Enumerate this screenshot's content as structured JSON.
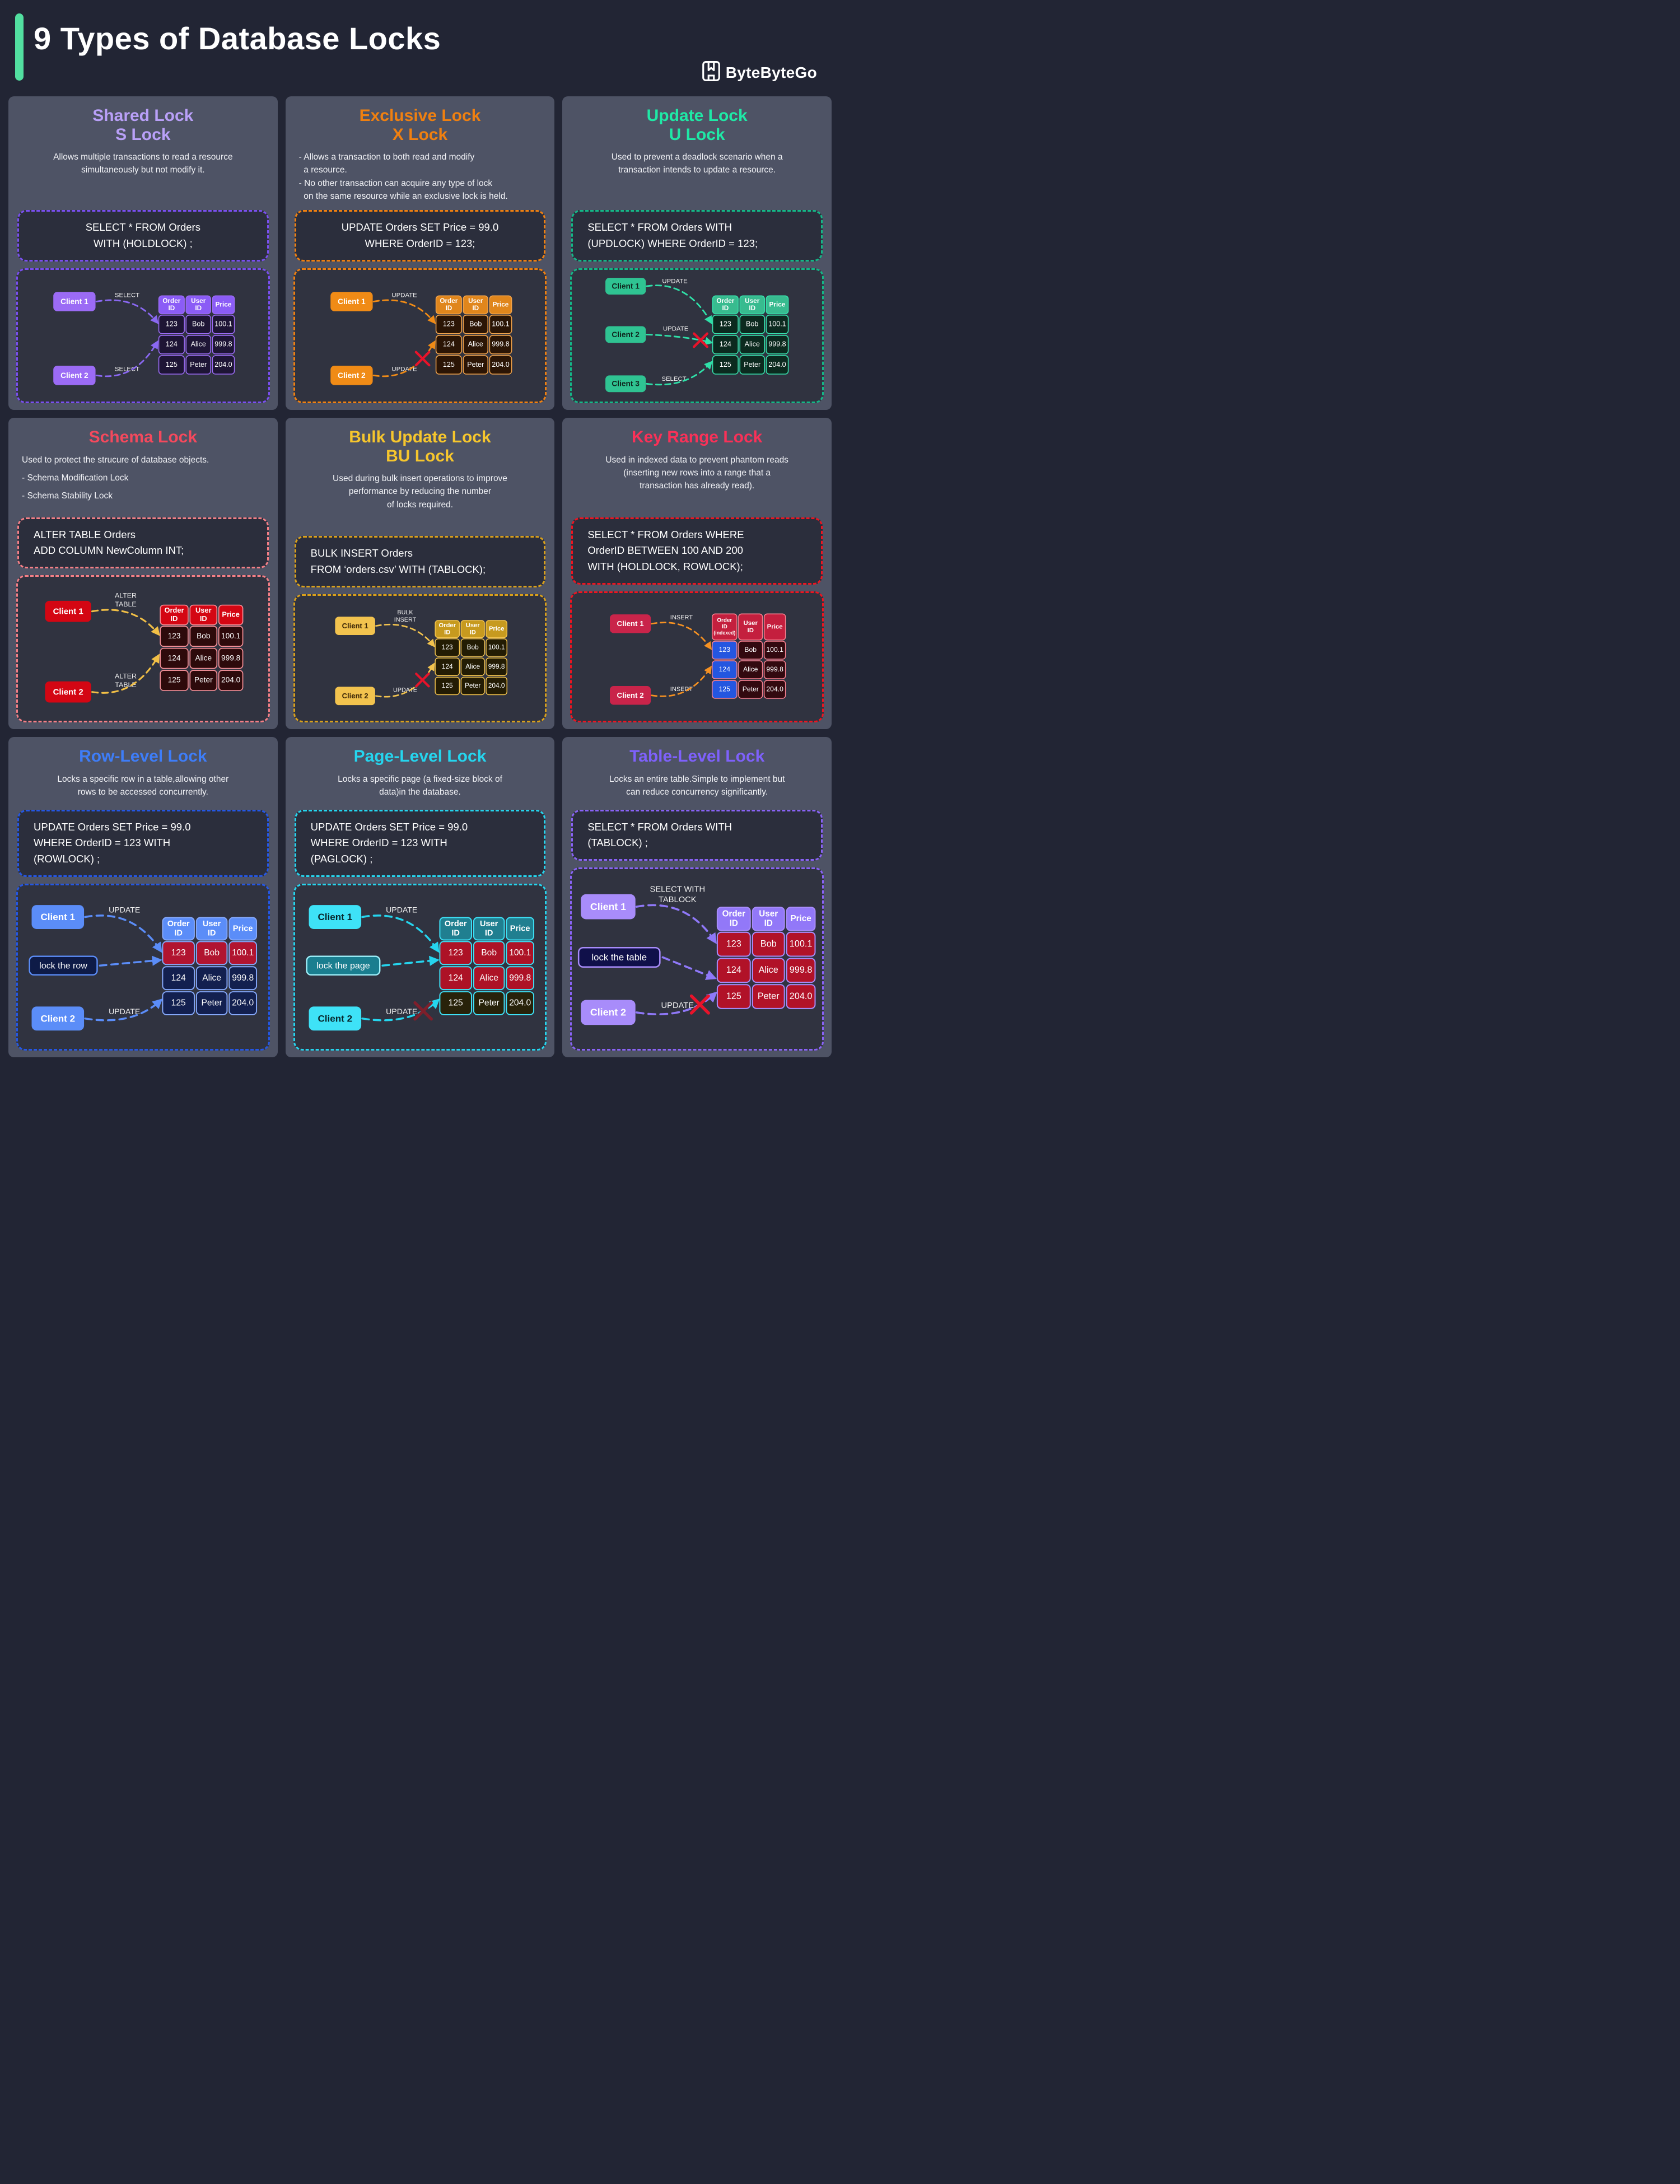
{
  "header": {
    "title": "9 Types of Database Locks",
    "brand": "ByteByteGo",
    "accent_bar_color": "#52dfa0"
  },
  "table_common": {
    "header_cols": [
      [
        "Order",
        "ID"
      ],
      [
        "User",
        "ID"
      ],
      [
        "Price"
      ]
    ],
    "rows": [
      [
        "123",
        "Bob",
        "100.1"
      ],
      [
        "124",
        "Alice",
        "999.8"
      ],
      [
        "125",
        "Peter",
        "204.0"
      ]
    ]
  },
  "panels": [
    {
      "key": "shared-lock",
      "title_lines": [
        "Shared Lock",
        "S Lock"
      ],
      "title_color": "#b9a0f8",
      "desc_align": "center",
      "desc_lines": [
        "Allows multiple transactions to read a resource",
        "simultaneously but not modify it."
      ],
      "code_align": "center",
      "code_lines": [
        "SELECT * FROM Orders",
        "WITH (HOLDLOCK) ;"
      ],
      "colors": {
        "dash": "#7a4ff0",
        "arrow": "#8a68f2",
        "label": "#f0f0f0",
        "x": "#e8132a",
        "client_bg": "#9b6bf5",
        "client_text": "#ffffff",
        "header_bg": "#8b5cf6",
        "header_text": "#ffffff",
        "cell_bg": "#1e1535",
        "cell_border": "#9b6bf5",
        "row_bg": null,
        "col0_bg": null
      },
      "clients": [
        {
          "name": "Client 1",
          "action_lines": [
            "SELECT"
          ],
          "blocked": false,
          "target_row": 0
        },
        {
          "name": "Client 2",
          "action_lines": [
            "SELECT"
          ],
          "blocked": false,
          "target_row": 1
        }
      ],
      "mid_box": null,
      "header_cols_override": null
    },
    {
      "key": "exclusive-lock",
      "title_lines": [
        "Exclusive Lock",
        "X Lock"
      ],
      "title_color": "#f08010",
      "desc_align": "left",
      "desc_lines": [
        "- Allows a transaction to both read and modify",
        "  a resource.",
        "- No other transaction can acquire any type of lock",
        "  on the same resource while an exclusive lock is held."
      ],
      "code_align": "center",
      "code_lines": [
        "UPDATE Orders SET Price = 99.0",
        "WHERE OrderID = 123;"
      ],
      "colors": {
        "dash": "#f08010",
        "arrow": "#f08b16",
        "label": "#f0f0f0",
        "x": "#e8132a",
        "client_bg": "#f08b16",
        "client_text": "#ffffff",
        "header_bg": "#e0861c",
        "header_text": "#ffffff",
        "cell_bg": "#2b1505",
        "cell_border": "#f0a24a",
        "row_bg": null,
        "col0_bg": null
      },
      "clients": [
        {
          "name": "Client 1",
          "action_lines": [
            "UPDATE"
          ],
          "blocked": false,
          "target_row": 0
        },
        {
          "name": "Client 2",
          "action_lines": [
            "UPDATE"
          ],
          "blocked": true,
          "target_row": 1
        }
      ],
      "mid_box": null,
      "header_cols_override": null
    },
    {
      "key": "update-lock",
      "title_lines": [
        "Update Lock",
        "U Lock"
      ],
      "title_color": "#1fe9a6",
      "desc_align": "center",
      "desc_lines": [
        "Used to prevent a deadlock scenario when a",
        "transaction intends to update a resource."
      ],
      "code_align": "left",
      "code_lines": [
        "SELECT * FROM Orders WITH",
        "(UPDLOCK) WHERE OrderID = 123;"
      ],
      "colors": {
        "dash": "#14b787",
        "arrow": "#2fe0a8",
        "label": "#f0f0f0",
        "x": "#e8132a",
        "client_bg": "#2fc392",
        "client_text": "#10261e",
        "header_bg": "#38bb8f",
        "header_text": "#ffffff",
        "cell_bg": "#0c2a1f",
        "cell_border": "#35e2ac",
        "row_bg": null,
        "col0_bg": null
      },
      "clients": [
        {
          "name": "Client 1",
          "action_lines": [
            "UPDATE"
          ],
          "blocked": false,
          "target_row": 0
        },
        {
          "name": "Client 2",
          "action_lines": [
            "UPDATE"
          ],
          "blocked": true,
          "target_row": 1
        },
        {
          "name": "Client 3",
          "action_lines": [
            "SELECT"
          ],
          "blocked": false,
          "target_row": 2
        }
      ],
      "mid_box": null,
      "header_cols_override": null
    },
    {
      "key": "schema-lock",
      "title_lines": [
        "Schema Lock"
      ],
      "title_color": "#f4495d",
      "desc_align": "left",
      "desc_lines": [
        "Used to protect the strucure of database objects.",
        "- Schema Modification Lock",
        "- Schema Stability Lock"
      ],
      "code_align": "left",
      "code_lines": [
        "ALTER TABLE Orders",
        "ADD COLUMN NewColumn INT;"
      ],
      "colors": {
        "dash": "#f47f86",
        "arrow": "#f2c046",
        "label": "#f0f0f0",
        "x": "#e8132a",
        "client_bg": "#d40613",
        "client_text": "#ffffff",
        "header_bg": "#d40613",
        "header_text": "#ffffff",
        "cell_bg": "#2d0a0b",
        "cell_border": "#f28e96",
        "row_bg": null,
        "col0_bg": null
      },
      "clients": [
        {
          "name": "Client 1",
          "action_lines": [
            "ALTER",
            "TABLE"
          ],
          "blocked": false,
          "target_row": 0
        },
        {
          "name": "Client 2",
          "action_lines": [
            "ALTER",
            "TABLE"
          ],
          "blocked": false,
          "target_row": 1
        }
      ],
      "mid_box": null,
      "header_cols_override": null
    },
    {
      "key": "bulk-update-lock",
      "title_lines": [
        "Bulk Update Lock",
        "BU Lock"
      ],
      "title_color": "#f6c62d",
      "desc_align": "center",
      "desc_lines": [
        "Used during bulk insert operations to improve",
        "performance by reducing the number",
        "of locks required."
      ],
      "code_align": "left",
      "code_lines": [
        "BULK INSERT Orders",
        "FROM ‘orders.csv’ WITH (TABLOCK);"
      ],
      "colors": {
        "dash": "#d9a01b",
        "arrow": "#f2c34e",
        "label": "#f0f0f0",
        "x": "#e8132a",
        "client_bg": "#f2c34e",
        "client_text": "#3a2506",
        "header_bg": "#c79a1f",
        "header_text": "#ffffff",
        "cell_bg": "#231c04",
        "cell_border": "#f2c34e",
        "row_bg": null,
        "col0_bg": null
      },
      "clients": [
        {
          "name": "Client 1",
          "action_lines": [
            "BULK",
            "INSERT"
          ],
          "blocked": false,
          "target_row": 0
        },
        {
          "name": "Client 2",
          "action_lines": [
            "UPDATE"
          ],
          "blocked": true,
          "target_row": 1
        }
      ],
      "mid_box": null,
      "header_cols_override": null
    },
    {
      "key": "key-range-lock",
      "title_lines": [
        "Key Range Lock"
      ],
      "title_color": "#f93158",
      "desc_align": "center",
      "desc_lines": [
        "Used in indexed data to prevent phantom reads",
        "(inserting new rows into a range that a",
        "transaction has already read)."
      ],
      "code_align": "left",
      "code_lines": [
        "SELECT * FROM Orders WHERE",
        "OrderID BETWEEN 100 AND 200",
        "WITH (HOLDLOCK, ROWLOCK);"
      ],
      "colors": {
        "dash": "#ee1420",
        "arrow": "#f59122",
        "label": "#f0f0f0",
        "x": "#e8132a",
        "client_bg": "#c9244a",
        "client_text": "#ffffff",
        "header_bg": "#c41f3e",
        "header_text": "#ffffff",
        "cell_bg": "#32090f",
        "cell_border": "#f8808f",
        "row_bg": null,
        "col0_bg": "#2456e0"
      },
      "clients": [
        {
          "name": "Client 1",
          "action_lines": [
            "INSERT"
          ],
          "blocked": false,
          "target_row": 0
        },
        {
          "name": "Client 2",
          "action_lines": [
            "INSERT"
          ],
          "blocked": false,
          "target_row": 1
        }
      ],
      "mid_box": null,
      "header_cols_override": [
        [
          "Order",
          "ID",
          "(indexed)"
        ],
        [
          "User",
          "ID"
        ],
        [
          "Price"
        ]
      ]
    },
    {
      "key": "row-level-lock",
      "title_lines": [
        "Row-Level Lock"
      ],
      "title_color": "#3e7df8",
      "desc_align": "center",
      "desc_lines": [
        "Locks a specific row in a table,allowing other",
        "rows to be accessed concurrently."
      ],
      "code_align": "left",
      "code_lines": [
        "UPDATE Orders SET Price = 99.0",
        "WHERE OrderID = 123 WITH",
        "(ROWLOCK) ;"
      ],
      "colors": {
        "dash": "#2457e6",
        "arrow": "#5b8df8",
        "label": "#f0f0f0",
        "x": "#e8132a",
        "client_bg": "#5b8df8",
        "client_text": "#ffffff",
        "header_bg": "#5b8df8",
        "header_text": "#ffffff",
        "cell_bg": "#13204f",
        "cell_border": "#85a8fa",
        "row_bg": [
          "#b11430",
          "#13204f",
          "#13204f"
        ],
        "col0_bg": null,
        "midbox_bg": "#0e1b47",
        "midbox_border": "#5b8df8",
        "midbox_text": "#ffffff"
      },
      "clients": [
        {
          "name": "Client 1",
          "action_lines": [
            "UPDATE"
          ],
          "blocked": false,
          "target_row": 0
        },
        {
          "name": "Client 2",
          "action_lines": [
            "UPDATE"
          ],
          "blocked": false,
          "target_row": 2
        }
      ],
      "mid_box": {
        "label": "lock the row",
        "target_row": 0
      },
      "header_cols_override": null
    },
    {
      "key": "page-level-lock",
      "title_lines": [
        "Page-Level Lock"
      ],
      "title_color": "#25d5ee",
      "desc_align": "center",
      "desc_lines": [
        "Locks a specific page (a fixed-size block of",
        "data)in the database."
      ],
      "code_align": "left",
      "code_lines": [
        "UPDATE Orders SET Price = 99.0",
        "WHERE OrderID = 123 WITH",
        "(PAGLOCK) ;"
      ],
      "colors": {
        "dash": "#25d5ee",
        "arrow": "#25d5ee",
        "label": "#f0f0f0",
        "x": "#7e1f2b",
        "client_bg": "#3ee2f7",
        "client_text": "#07262b",
        "header_bg": "#207f90",
        "header_text": "#ffffff",
        "cell_bg": "#28220a",
        "cell_border": "#3ee2f7",
        "row_bg": [
          "#ad1226",
          "#ad1226",
          "#28220a"
        ],
        "col0_bg": null,
        "midbox_bg": "#1a7e8f",
        "midbox_border": "#9ff0fa",
        "midbox_text": "#ffffff"
      },
      "clients": [
        {
          "name": "Client 1",
          "action_lines": [
            "UPDATE"
          ],
          "blocked": false,
          "target_row": 0
        },
        {
          "name": "Client 2",
          "action_lines": [
            "UPDATE"
          ],
          "blocked": true,
          "target_row": 2
        }
      ],
      "mid_box": {
        "label": "lock the page",
        "target_row": 0
      },
      "header_cols_override": null
    },
    {
      "key": "table-level-lock",
      "title_lines": [
        "Table-Level Lock"
      ],
      "title_color": "#7e61fb",
      "desc_align": "center",
      "desc_lines": [
        "Locks an entire table.Simple to implement but",
        "can reduce concurrency significantly."
      ],
      "code_align": "left",
      "code_lines": [
        "SELECT * FROM Orders WITH",
        "(TABLOCK) ;"
      ],
      "colors": {
        "dash": "#8a63f7",
        "arrow": "#8f78f8",
        "label": "#f0f0f0",
        "x": "#e8132a",
        "client_bg": "#a88cfa",
        "client_text": "#ffffff",
        "header_bg": "#9278f8",
        "header_text": "#ffffff",
        "cell_bg": "#b11228",
        "cell_border": "#a88cfa",
        "row_bg": [
          "#b11228",
          "#b11228",
          "#b11228"
        ],
        "col0_bg": null,
        "midbox_bg": "#10104a",
        "midbox_border": "#a88cfa",
        "midbox_text": "#ffffff"
      },
      "clients": [
        {
          "name": "Client 1",
          "action_lines": [
            "SELECT WITH",
            "TABLOCK"
          ],
          "blocked": false,
          "target_row": 0
        },
        {
          "name": "Client 2",
          "action_lines": [
            "UPDATE"
          ],
          "blocked": true,
          "target_row": 2
        }
      ],
      "mid_box": {
        "label": "lock the table",
        "target_row": 1
      },
      "header_cols_override": null
    }
  ]
}
